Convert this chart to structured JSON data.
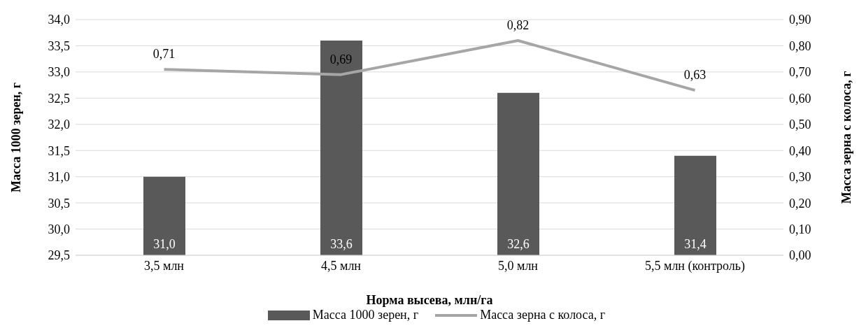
{
  "chart_data": {
    "type": "bar",
    "xlabel": "Норма высева, млн/га",
    "ylabel": "Масса 1000 зерен, г",
    "y2label": "Масса зерна с колоса, г",
    "categories": [
      "3,5 млн",
      "4,5 млн",
      "5,0 млн",
      "5,5 млн (контроль)"
    ],
    "series": [
      {
        "name": "Масса 1000 зерен, г",
        "color": "#595959",
        "values": [
          31.0,
          33.6,
          32.6,
          31.4
        ],
        "value_labels": [
          "31,0",
          "33,6",
          "32,6",
          "31,4"
        ]
      },
      {
        "name": "Масса зерна с колоса, г",
        "type": "line",
        "axis": "y2",
        "color": "#a6a6a6",
        "values": [
          0.71,
          0.69,
          0.82,
          0.63
        ],
        "value_labels": [
          "0,71",
          "0,69",
          "0,82",
          "0,63"
        ]
      }
    ],
    "ylim": [
      29.5,
      34.0
    ],
    "yticks": [
      {
        "value": 29.5,
        "label": "29,5"
      },
      {
        "value": 30.0,
        "label": "30,0"
      },
      {
        "value": 30.5,
        "label": "30,5"
      },
      {
        "value": 31.0,
        "label": "31,0"
      },
      {
        "value": 31.5,
        "label": "31,5"
      },
      {
        "value": 32.0,
        "label": "32,0"
      },
      {
        "value": 32.5,
        "label": "32,5"
      },
      {
        "value": 33.0,
        "label": "33,0"
      },
      {
        "value": 33.5,
        "label": "33,5"
      },
      {
        "value": 34.0,
        "label": "34,0"
      }
    ],
    "y2lim": [
      0,
      0.9
    ],
    "y2ticks": [
      {
        "value": 0,
        "label": "0,00"
      },
      {
        "value": 0.1,
        "label": "0,10"
      },
      {
        "value": 0.2,
        "label": "0,20"
      },
      {
        "value": 0.3,
        "label": "0,30"
      },
      {
        "value": 0.4,
        "label": "0,40"
      },
      {
        "value": 0.5,
        "label": "0,50"
      },
      {
        "value": 0.6,
        "label": "0,60"
      },
      {
        "value": 0.7,
        "label": "0,70"
      },
      {
        "value": 0.8,
        "label": "0,80"
      },
      {
        "value": 0.9,
        "label": "0,90"
      }
    ],
    "grid": "y",
    "legend": "bottom",
    "marker": "none",
    "line_style": "solid"
  }
}
